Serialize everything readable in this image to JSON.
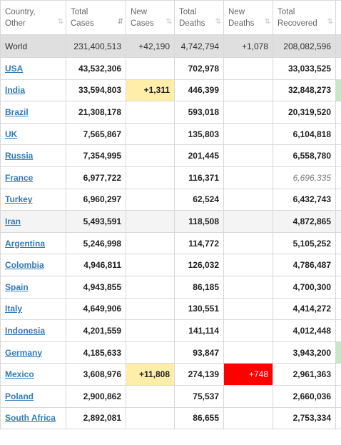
{
  "headers": [
    {
      "line1": "Country,",
      "line2": "Other",
      "sort": "⇅"
    },
    {
      "line1": "Total",
      "line2": "Cases",
      "sort": "⇵"
    },
    {
      "line1": "New",
      "line2": "Cases",
      "sort": "⇅"
    },
    {
      "line1": "Total",
      "line2": "Deaths",
      "sort": "⇅"
    },
    {
      "line1": "New",
      "line2": "Deaths",
      "sort": "⇅"
    },
    {
      "line1": "Total",
      "line2": "Recovered",
      "sort": "⇅"
    }
  ],
  "world": {
    "country": "World",
    "total_cases": "231,400,513",
    "new_cases": "+42,190",
    "total_deaths": "4,742,794",
    "new_deaths": "+1,078",
    "total_recovered": "208,082,596"
  },
  "rows": [
    {
      "country": "USA",
      "total_cases": "43,532,306",
      "new_cases": "",
      "total_deaths": "702,978",
      "new_deaths": "",
      "total_recovered": "33,033,525"
    },
    {
      "country": "India",
      "total_cases": "33,594,803",
      "new_cases": "+1,311",
      "total_deaths": "446,399",
      "new_deaths": "",
      "total_recovered": "32,848,273"
    },
    {
      "country": "Brazil",
      "total_cases": "21,308,178",
      "new_cases": "",
      "total_deaths": "593,018",
      "new_deaths": "",
      "total_recovered": "20,319,520"
    },
    {
      "country": "UK",
      "total_cases": "7,565,867",
      "new_cases": "",
      "total_deaths": "135,803",
      "new_deaths": "",
      "total_recovered": "6,104,818"
    },
    {
      "country": "Russia",
      "total_cases": "7,354,995",
      "new_cases": "",
      "total_deaths": "201,445",
      "new_deaths": "",
      "total_recovered": "6,558,780"
    },
    {
      "country": "France",
      "total_cases": "6,977,722",
      "new_cases": "",
      "total_deaths": "116,371",
      "new_deaths": "",
      "total_recovered": "6,696,335"
    },
    {
      "country": "Turkey",
      "total_cases": "6,960,297",
      "new_cases": "",
      "total_deaths": "62,524",
      "new_deaths": "",
      "total_recovered": "6,432,743"
    },
    {
      "country": "Iran",
      "total_cases": "5,493,591",
      "new_cases": "",
      "total_deaths": "118,508",
      "new_deaths": "",
      "total_recovered": "4,872,865"
    },
    {
      "country": "Argentina",
      "total_cases": "5,246,998",
      "new_cases": "",
      "total_deaths": "114,772",
      "new_deaths": "",
      "total_recovered": "5,105,252"
    },
    {
      "country": "Colombia",
      "total_cases": "4,946,811",
      "new_cases": "",
      "total_deaths": "126,032",
      "new_deaths": "",
      "total_recovered": "4,786,487"
    },
    {
      "country": "Spain",
      "total_cases": "4,943,855",
      "new_cases": "",
      "total_deaths": "86,185",
      "new_deaths": "",
      "total_recovered": "4,700,300"
    },
    {
      "country": "Italy",
      "total_cases": "4,649,906",
      "new_cases": "",
      "total_deaths": "130,551",
      "new_deaths": "",
      "total_recovered": "4,414,272"
    },
    {
      "country": "Indonesia",
      "total_cases": "4,201,559",
      "new_cases": "",
      "total_deaths": "141,114",
      "new_deaths": "",
      "total_recovered": "4,012,448"
    },
    {
      "country": "Germany",
      "total_cases": "4,185,633",
      "new_cases": "",
      "total_deaths": "93,847",
      "new_deaths": "",
      "total_recovered": "3,943,200"
    },
    {
      "country": "Mexico",
      "total_cases": "3,608,976",
      "new_cases": "+11,808",
      "total_deaths": "274,139",
      "new_deaths": "+748",
      "total_recovered": "2,961,363"
    },
    {
      "country": "Poland",
      "total_cases": "2,900,862",
      "new_cases": "",
      "total_deaths": "75,537",
      "new_deaths": "",
      "total_recovered": "2,660,036"
    },
    {
      "country": "South Africa",
      "total_cases": "2,892,081",
      "new_cases": "",
      "total_deaths": "86,655",
      "new_deaths": "",
      "total_recovered": "2,753,334"
    }
  ],
  "colors": {
    "new_cases_highlight": "#ffeeaa",
    "new_deaths_highlight": "#ff0000",
    "link": "#337ab7",
    "world_row": "#dfdfdf",
    "recovered_edge_green": "#c8e6c9"
  }
}
